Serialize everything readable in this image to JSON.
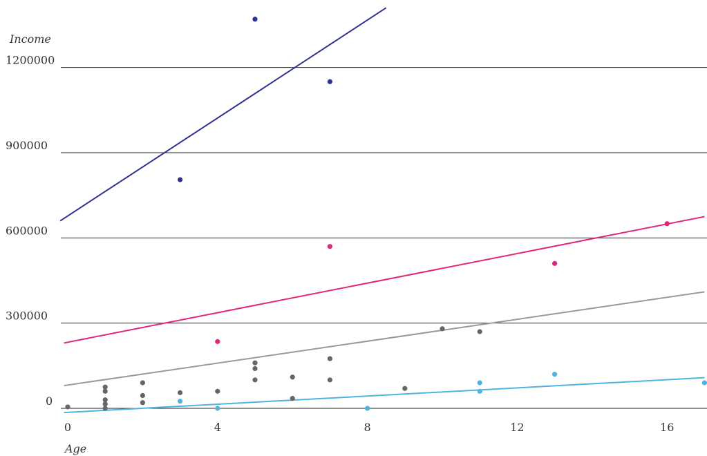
{
  "chart_data": {
    "type": "scatter",
    "xlabel": "Age",
    "ylabel": "Income",
    "xlim": [
      -0.1,
      17
    ],
    "ylim": [
      0,
      1400000
    ],
    "xticks": [
      0,
      4,
      8,
      12,
      16
    ],
    "yticks": [
      0,
      300000,
      600000,
      900000,
      1200000
    ],
    "xtick_labels": [
      "0",
      "4",
      "8",
      "12",
      "16"
    ],
    "ytick_labels": [
      "0",
      "300000",
      "600000",
      "900000",
      "1200000"
    ],
    "grid": "horizontal",
    "series": [
      {
        "color": "#666666",
        "line_color": "#999999",
        "points": [
          [
            0,
            5000
          ],
          [
            1,
            0
          ],
          [
            1,
            15000
          ],
          [
            1,
            30000
          ],
          [
            1,
            60000
          ],
          [
            1,
            75000
          ],
          [
            2,
            20000
          ],
          [
            2,
            45000
          ],
          [
            2,
            90000
          ],
          [
            3,
            55000
          ],
          [
            4,
            60000
          ],
          [
            5,
            100000
          ],
          [
            5,
            140000
          ],
          [
            5,
            160000
          ],
          [
            6,
            35000
          ],
          [
            6,
            110000
          ],
          [
            7,
            100000
          ],
          [
            7,
            175000
          ],
          [
            9,
            70000
          ],
          [
            10,
            280000
          ],
          [
            11,
            270000
          ]
        ],
        "fit": [
          [
            -0.1,
            80000
          ],
          [
            17,
            410000
          ]
        ]
      },
      {
        "color": "#4fb3e0",
        "line_color": "#4fb3e0",
        "points": [
          [
            3,
            25000
          ],
          [
            4,
            0
          ],
          [
            8,
            0
          ],
          [
            11,
            60000
          ],
          [
            11,
            90000
          ],
          [
            13,
            120000
          ],
          [
            17,
            90000
          ]
        ],
        "fit": [
          [
            -0.1,
            -15000
          ],
          [
            17,
            108000
          ]
        ]
      },
      {
        "color": "#e0277a",
        "line_color": "#e0277a",
        "points": [
          [
            4,
            235000
          ],
          [
            7,
            570000
          ],
          [
            13,
            510000
          ],
          [
            16,
            650000
          ]
        ],
        "fit": [
          [
            -0.1,
            230000
          ],
          [
            17,
            675000
          ]
        ]
      },
      {
        "color": "#2e3192",
        "line_color": "#2e3192",
        "points": [
          [
            3,
            805000
          ],
          [
            5,
            1370000
          ],
          [
            7,
            1150000
          ]
        ],
        "fit": [
          [
            -0.2,
            660000
          ],
          [
            8.5,
            1410000
          ]
        ]
      }
    ]
  }
}
